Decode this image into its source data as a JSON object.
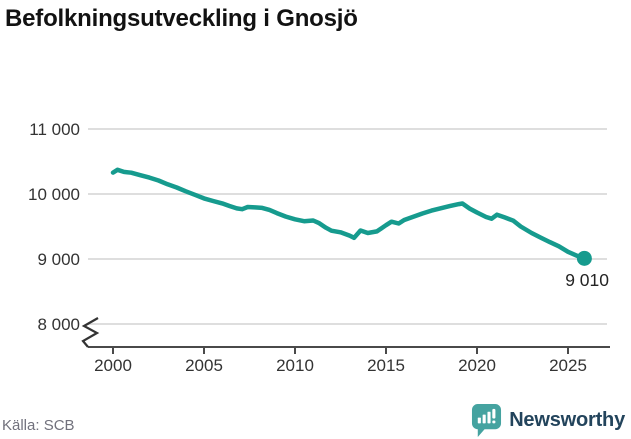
{
  "header": {
    "title": "Befolkningsutveckling i Gnosjö"
  },
  "footer": {
    "source": "Källa: SCB",
    "brand": "Newsworthy"
  },
  "colors": {
    "line": "#169b8e",
    "grid": "#dedede",
    "axis": "#4a4a4a",
    "tick_text": "#333333",
    "title_text": "#121212",
    "source_text": "#71717c",
    "logo_teal": "#45a3a0",
    "brand_text": "#23445c"
  },
  "chart_data": {
    "type": "line",
    "title": "Befolkningsutveckling i Gnosjö",
    "series_name": "Befolkning i Gnosjö",
    "xlabel": "",
    "ylabel": "",
    "xlim": [
      2000,
      2026.3
    ],
    "ylim": [
      8000,
      11000
    ],
    "axis_break_at_bottom": true,
    "grid": "horizontal",
    "legend_position": "none",
    "yticks": [
      11000,
      10000,
      9000,
      8000
    ],
    "ytick_labels": [
      "11 000",
      "10 000",
      "9 000",
      "8 000"
    ],
    "xticks": [
      2000,
      2005,
      2010,
      2015,
      2020,
      2025
    ],
    "xtick_labels": [
      "2000",
      "2005",
      "2010",
      "2015",
      "2020",
      "2025"
    ],
    "end_label": "9 010",
    "end_value": 9010,
    "points": [
      [
        2000.0,
        10330
      ],
      [
        2000.25,
        10372
      ],
      [
        2000.6,
        10340
      ],
      [
        2001.0,
        10328
      ],
      [
        2001.5,
        10290
      ],
      [
        2002.0,
        10252
      ],
      [
        2002.5,
        10208
      ],
      [
        2003.0,
        10150
      ],
      [
        2003.5,
        10100
      ],
      [
        2004.0,
        10042
      ],
      [
        2004.5,
        9988
      ],
      [
        2005.0,
        9932
      ],
      [
        2005.5,
        9892
      ],
      [
        2006.0,
        9856
      ],
      [
        2006.4,
        9816
      ],
      [
        2006.8,
        9778
      ],
      [
        2007.1,
        9766
      ],
      [
        2007.4,
        9800
      ],
      [
        2007.8,
        9794
      ],
      [
        2008.2,
        9786
      ],
      [
        2008.6,
        9756
      ],
      [
        2009.0,
        9706
      ],
      [
        2009.5,
        9652
      ],
      [
        2010.0,
        9610
      ],
      [
        2010.5,
        9582
      ],
      [
        2011.0,
        9592
      ],
      [
        2011.3,
        9556
      ],
      [
        2011.7,
        9482
      ],
      [
        2012.0,
        9436
      ],
      [
        2012.5,
        9410
      ],
      [
        2013.0,
        9360
      ],
      [
        2013.25,
        9326
      ],
      [
        2013.6,
        9438
      ],
      [
        2014.0,
        9400
      ],
      [
        2014.5,
        9424
      ],
      [
        2015.0,
        9520
      ],
      [
        2015.3,
        9574
      ],
      [
        2015.7,
        9546
      ],
      [
        2016.0,
        9600
      ],
      [
        2016.5,
        9650
      ],
      [
        2017.0,
        9700
      ],
      [
        2017.5,
        9744
      ],
      [
        2018.0,
        9780
      ],
      [
        2018.5,
        9814
      ],
      [
        2019.0,
        9844
      ],
      [
        2019.2,
        9854
      ],
      [
        2019.6,
        9776
      ],
      [
        2020.0,
        9716
      ],
      [
        2020.5,
        9646
      ],
      [
        2020.8,
        9620
      ],
      [
        2021.1,
        9682
      ],
      [
        2021.5,
        9642
      ],
      [
        2022.0,
        9590
      ],
      [
        2022.4,
        9500
      ],
      [
        2023.0,
        9400
      ],
      [
        2023.5,
        9330
      ],
      [
        2024.0,
        9260
      ],
      [
        2024.5,
        9196
      ],
      [
        2025.0,
        9110
      ],
      [
        2025.5,
        9050
      ],
      [
        2025.9,
        9010
      ]
    ]
  }
}
